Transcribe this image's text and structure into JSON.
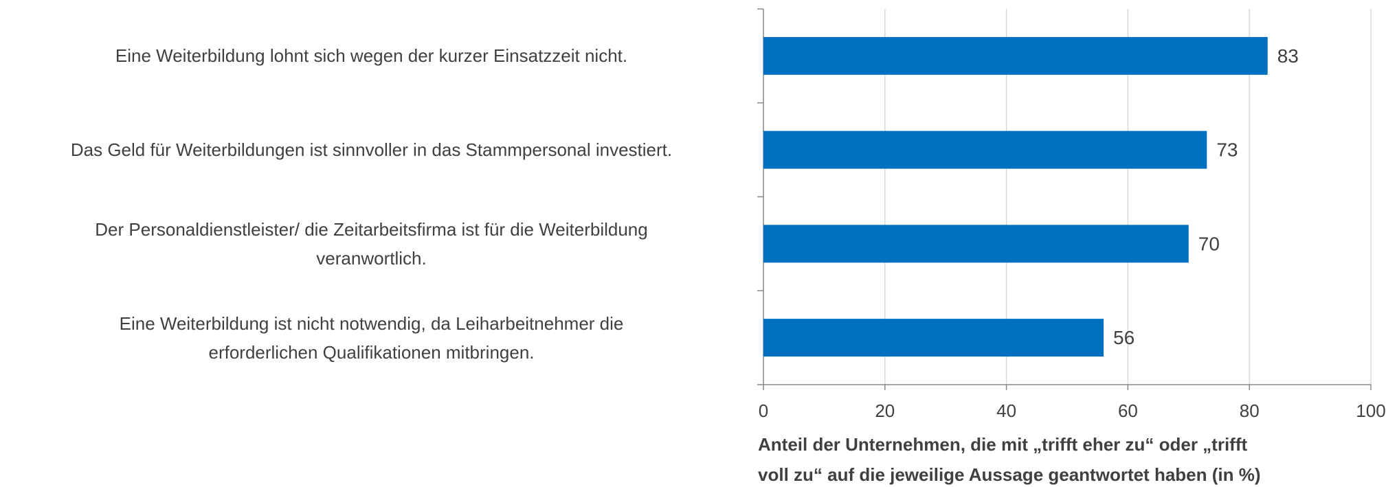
{
  "chart_data": {
    "type": "bar",
    "orientation": "horizontal",
    "categories": [
      "Eine Weiterbildung lohnt sich wegen der kurzer Einsatzzeit nicht.",
      "Das Geld für Weiterbildungen ist sinnvoller in das Stammpersonal investiert.",
      "Der Personaldienstleister/ die Zeitarbeitsfirma ist für die Weiterbildung\nveranwortlich.",
      "Eine Weiterbildung ist nicht notwendig, da Leiharbeitnehmer die\nerforderlichen Qualifikationen mitbringen."
    ],
    "values": [
      83,
      73,
      70,
      56
    ],
    "color": "#0070c0",
    "xlim": [
      0,
      100
    ],
    "xticks": [
      0,
      20,
      40,
      60,
      80,
      100
    ],
    "grid": true,
    "x_label": "Anteil der Unternehmen, die mit „trifft eher zu“ oder „trifft\nvoll zu“ auf die jeweilige Aussage geantwortet haben (in %)"
  }
}
